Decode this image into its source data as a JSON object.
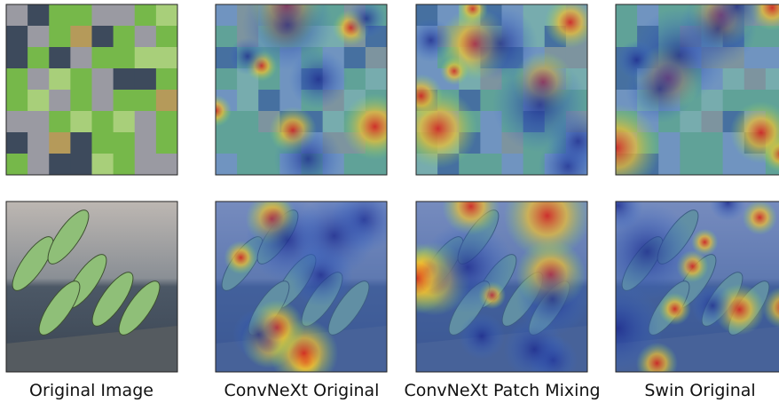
{
  "labels": [
    "Original Image",
    "ConvNeXt Original",
    "ConvNeXt Patch Mixing",
    "Swin Original"
  ]
}
